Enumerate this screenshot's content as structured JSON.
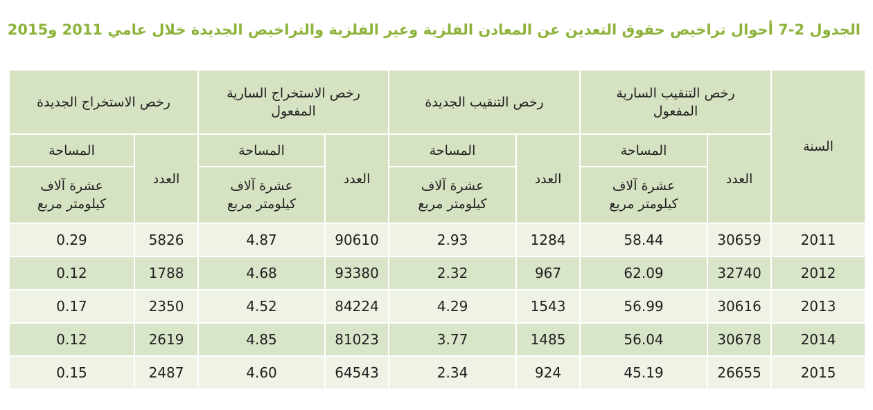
{
  "title": "الجدول 2-7 أحوال تراخيص حقوق التعدين عن المعادن الفلزية وغير الفلزية والتراخيص الجديدة خلال عامي 2011 و2015",
  "colors": {
    "title": "#8db33b",
    "header_bg": "#d6e3c2",
    "row_light": "#eef3e6",
    "row_dark": "#d9e5c9",
    "grid": "#ffffff"
  },
  "table": {
    "headers": {
      "year": "السنة",
      "groups": [
        "رخص التنقيب السارية\nالمفعول",
        "رخص التنقيب الجديدة",
        "رخص الاستخراج السارية\nالمفعول",
        "رخص الاستخراج الجديدة"
      ],
      "count": "العدد",
      "area": "المساحة",
      "area_unit": "عشرة آلاف\nكيلومتر مربع"
    },
    "rows": [
      {
        "year": "2011",
        "values": [
          "30659",
          "58.44",
          "1284",
          "2.93",
          "90610",
          "4.87",
          "5826",
          "0.29"
        ]
      },
      {
        "year": "2012",
        "values": [
          "32740",
          "62.09",
          "967",
          "2.32",
          "93380",
          "4.68",
          "1788",
          "0.12"
        ]
      },
      {
        "year": "2013",
        "values": [
          "30616",
          "56.99",
          "1543",
          "4.29",
          "84224",
          "4.52",
          "2350",
          "0.17"
        ]
      },
      {
        "year": "2014",
        "values": [
          "30678",
          "56.04",
          "1485",
          "3.77",
          "81023",
          "4.85",
          "2619",
          "0.12"
        ]
      },
      {
        "year": "2015",
        "values": [
          "26655",
          "45.19",
          "924",
          "2.34",
          "64543",
          "4.60",
          "2487",
          "0.15"
        ]
      }
    ]
  }
}
